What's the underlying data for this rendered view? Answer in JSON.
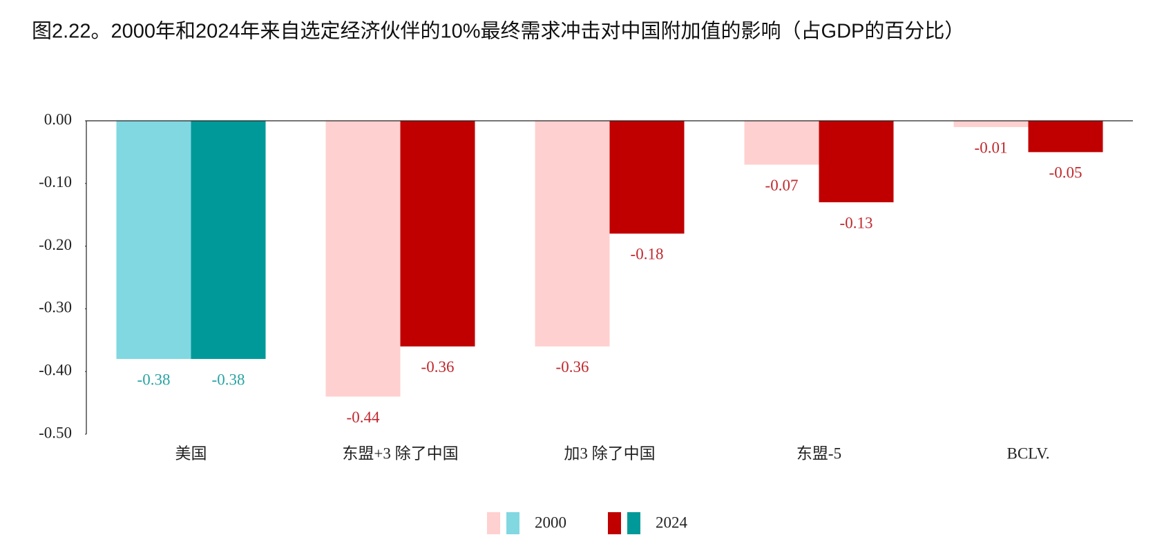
{
  "chart_data": {
    "type": "bar",
    "title": "图2.22。2000年和2024年来自选定经济伙伴的10%最终需求冲击对中国附加值的影响（占GDP的百分比）",
    "categories": [
      "美国",
      "东盟+3 除了中国",
      "加3 除了中国",
      "东盟-5",
      "BCLV."
    ],
    "series": [
      {
        "name": "2000",
        "colors": [
          "#81d8e1",
          "#ffd0d0",
          "#ffd0d0",
          "#ffd0d0",
          "#ffd0d0"
        ],
        "values": [
          -0.38,
          -0.44,
          -0.36,
          -0.07,
          -0.01
        ]
      },
      {
        "name": "2024",
        "colors": [
          "#009999",
          "#c00000",
          "#c00000",
          "#c00000",
          "#c00000"
        ],
        "values": [
          -0.38,
          -0.36,
          -0.18,
          -0.13,
          -0.05
        ]
      }
    ],
    "value_label_colors": [
      "#2aa3a3",
      "#c0282d",
      "#c0282d",
      "#c0282d",
      "#c0282d"
    ],
    "ylim": [
      -0.5,
      0
    ],
    "yticks": [
      {
        "value": 0,
        "label": "0.00"
      },
      {
        "value": -0.1,
        "label": "-0.10"
      },
      {
        "value": -0.2,
        "label": "-0.20"
      },
      {
        "value": -0.3,
        "label": "-0.30"
      },
      {
        "value": -0.4,
        "label": "-0.40"
      },
      {
        "value": -0.5,
        "label": "-0.50"
      }
    ],
    "legend": "bottom"
  }
}
